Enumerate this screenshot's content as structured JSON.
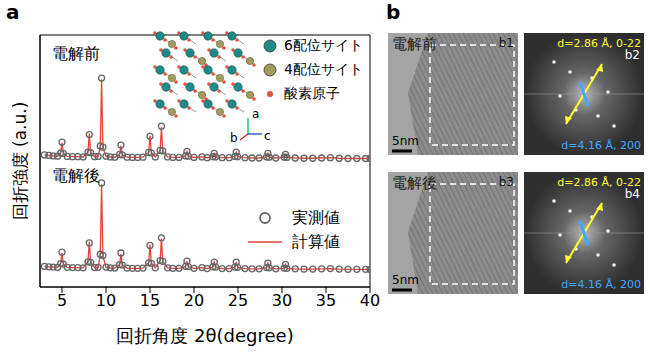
{
  "chart_data": {
    "type": "line",
    "panel_label": "a",
    "x_label": "回折角度 2θ(degree)",
    "y_label": "回折強度 (a.u.)",
    "xlim": [
      2.5,
      40
    ],
    "xticks": [
      5,
      10,
      15,
      20,
      25,
      30,
      35,
      40
    ],
    "ylim": [
      0,
      100
    ],
    "tick_labels": "x",
    "legend": "right",
    "x": [
      3,
      3.5,
      4,
      4.5,
      4.85,
      5.0,
      5.15,
      5.6,
      6.2,
      6.8,
      7.4,
      7.95,
      8.1,
      8.25,
      8.7,
      9.1,
      9.35,
      9.5,
      9.65,
      10.0,
      10.5,
      11.0,
      11.55,
      11.7,
      11.85,
      12.4,
      13.0,
      13.6,
      14.2,
      14.85,
      15.0,
      15.15,
      15.6,
      16.15,
      16.3,
      16.45,
      17.0,
      17.6,
      18.3,
      19.05,
      19.2,
      19.35,
      20.0,
      20.9,
      21.5,
      22.15,
      22.3,
      22.45,
      23.2,
      24.0,
      24.65,
      24.8,
      24.95,
      25.8,
      26.6,
      27.4,
      28.25,
      28.4,
      28.55,
      29.3,
      30.25,
      30.4,
      30.55,
      31.5,
      32.5,
      33.5,
      34.5,
      35.5,
      36.5,
      37.5,
      38.5,
      39.5,
      40
    ],
    "series": [
      {
        "name": "実測値",
        "pattern": "電解前",
        "color": "#666666",
        "marker": "circle",
        "values": [
          52.4,
          52.2,
          52.0,
          51.9,
          53.2,
          57.5,
          53.0,
          51.8,
          51.7,
          51.7,
          51.6,
          53.5,
          60.5,
          53.3,
          51.7,
          51.8,
          56.0,
          82.9,
          55.5,
          51.9,
          51.6,
          51.5,
          52.6,
          56.3,
          52.4,
          51.5,
          51.4,
          51.4,
          51.5,
          53.4,
          59.8,
          53.2,
          51.6,
          54.2,
          63.8,
          54.0,
          51.6,
          51.4,
          51.4,
          52.0,
          53.8,
          51.9,
          51.4,
          51.6,
          51.3,
          51.7,
          53.0,
          51.6,
          51.3,
          51.3,
          51.8,
          53.5,
          51.7,
          51.3,
          51.2,
          51.2,
          51.6,
          53.0,
          51.5,
          51.2,
          51.5,
          52.6,
          51.4,
          51.2,
          51.1,
          51.1,
          51.2,
          51.3,
          51.1,
          51.0,
          51.0,
          51.0,
          51.0
        ]
      },
      {
        "name": "計算値",
        "pattern": "電解前",
        "color": "#e8413c",
        "line_style": "solid",
        "values": [
          52.4,
          52.2,
          52.0,
          51.9,
          53.2,
          57.2,
          53.0,
          51.8,
          51.7,
          51.7,
          51.6,
          53.5,
          60.9,
          53.3,
          51.7,
          51.8,
          55.7,
          82.4,
          55.2,
          51.9,
          51.6,
          51.5,
          52.6,
          56.0,
          52.4,
          51.5,
          51.4,
          51.4,
          51.5,
          53.4,
          60.1,
          53.2,
          51.6,
          54.2,
          63.5,
          54.0,
          51.6,
          51.4,
          51.4,
          52.0,
          53.8,
          51.9,
          51.4,
          51.6,
          51.3,
          51.7,
          53.0,
          51.6,
          51.3,
          51.3,
          51.8,
          53.5,
          51.7,
          51.3,
          51.2,
          51.2,
          51.6,
          53.0,
          51.5,
          51.2,
          51.5,
          52.6,
          51.4,
          51.2,
          51.1,
          51.1,
          51.2,
          51.3,
          51.1,
          51.0,
          51.0,
          51.0,
          51.0
        ]
      },
      {
        "name": "実測値",
        "pattern": "電解後",
        "color": "#666666",
        "marker": "circle",
        "values": [
          8.2,
          8.0,
          7.9,
          7.8,
          9.3,
          13.8,
          9.1,
          7.8,
          7.7,
          7.7,
          7.6,
          10.0,
          17.5,
          9.8,
          7.7,
          7.8,
          13.0,
          41.3,
          12.5,
          7.9,
          7.6,
          7.5,
          8.9,
          13.5,
          8.7,
          7.5,
          7.4,
          7.4,
          7.5,
          9.6,
          16.5,
          9.4,
          7.6,
          10.5,
          19.5,
          10.2,
          7.6,
          7.4,
          7.4,
          8.2,
          10.3,
          8.1,
          7.4,
          7.7,
          7.3,
          8.0,
          9.9,
          7.9,
          7.3,
          7.3,
          7.9,
          9.9,
          7.8,
          7.3,
          7.2,
          7.2,
          7.7,
          9.5,
          7.6,
          7.2,
          7.5,
          8.9,
          7.4,
          7.2,
          7.1,
          7.1,
          7.2,
          7.3,
          7.1,
          7.0,
          7.0,
          7.0,
          7.0
        ]
      },
      {
        "name": "計算値",
        "pattern": "電解後",
        "color": "#e8413c",
        "line_style": "solid",
        "values": [
          8.2,
          8.0,
          7.9,
          7.8,
          9.3,
          13.5,
          9.1,
          7.8,
          7.7,
          7.7,
          7.6,
          10.0,
          17.9,
          9.8,
          7.7,
          7.8,
          12.7,
          40.8,
          12.2,
          7.9,
          7.6,
          7.5,
          8.9,
          13.2,
          8.7,
          7.5,
          7.4,
          7.4,
          7.5,
          9.6,
          16.8,
          9.4,
          7.6,
          10.5,
          19.2,
          10.2,
          7.6,
          7.4,
          7.4,
          8.2,
          10.3,
          8.1,
          7.4,
          7.7,
          7.3,
          8.0,
          9.9,
          7.9,
          7.3,
          7.3,
          7.9,
          9.9,
          7.8,
          7.3,
          7.2,
          7.2,
          7.7,
          9.5,
          7.6,
          7.2,
          7.5,
          8.9,
          7.4,
          7.2,
          7.1,
          7.1,
          7.2,
          7.3,
          7.1,
          7.0,
          7.0,
          7.0,
          7.0
        ]
      }
    ],
    "inset": {
      "legend": [
        {
          "label": "6配位サイト",
          "color": "#1f8a86"
        },
        {
          "label": "4配位サイト",
          "color": "#a39c5c"
        },
        {
          "label": "酸素原子",
          "color": "#e0523f"
        }
      ],
      "axes": [
        "a",
        "b",
        "c"
      ]
    }
  },
  "panel_b": {
    "label": "b",
    "images": [
      {
        "id": "b1",
        "title": "電解前",
        "scale_bar": "5nm"
      },
      {
        "id": "b2",
        "annotations": [
          {
            "text": "d=2.86 Å, 0-22",
            "color": "#ffff33"
          },
          {
            "text": "d=4.16 Å, 200",
            "color": "#3fa9ff"
          }
        ]
      },
      {
        "id": "b3",
        "title": "電解後",
        "scale_bar": "5nm"
      },
      {
        "id": "b4",
        "annotations": [
          {
            "text": "d=2.86 Å, 0-22",
            "color": "#ffff33"
          },
          {
            "text": "d=4.16 Å, 200",
            "color": "#3fa9ff"
          }
        ]
      }
    ]
  }
}
